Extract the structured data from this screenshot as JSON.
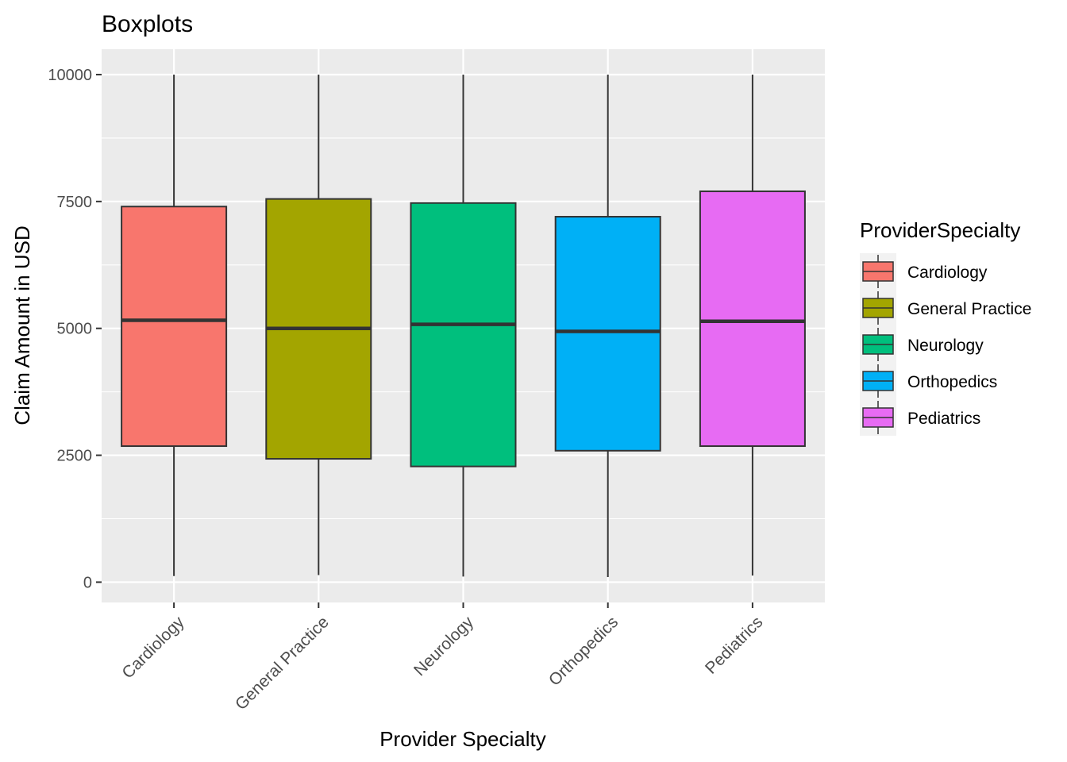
{
  "chart_data": {
    "type": "box",
    "title": "Boxplots",
    "xlabel": "Provider Specialty",
    "ylabel": "Claim Amount in USD",
    "ylim": [
      -400,
      10500
    ],
    "yticks": [
      0,
      2500,
      5000,
      7500,
      10000
    ],
    "ytick_labels": [
      "0",
      "2500",
      "5000",
      "7500",
      "10000"
    ],
    "grid": true,
    "legend": {
      "title": "ProviderSpecialty",
      "position": "right"
    },
    "categories": [
      "Cardiology",
      "General Practice",
      "Neurology",
      "Orthopedics",
      "Pediatrics"
    ],
    "series": [
      {
        "name": "Cardiology",
        "color": "#F8766D",
        "min": 120,
        "q1": 2680,
        "median": 5160,
        "q3": 7400,
        "max": 10000
      },
      {
        "name": "General Practice",
        "color": "#A3A500",
        "min": 140,
        "q1": 2430,
        "median": 5000,
        "q3": 7550,
        "max": 10000
      },
      {
        "name": "Neurology",
        "color": "#00BF7D",
        "min": 110,
        "q1": 2280,
        "median": 5080,
        "q3": 7470,
        "max": 10000
      },
      {
        "name": "Orthopedics",
        "color": "#00B0F6",
        "min": 100,
        "q1": 2590,
        "median": 4940,
        "q3": 7200,
        "max": 10000
      },
      {
        "name": "Pediatrics",
        "color": "#E76BF3",
        "min": 130,
        "q1": 2680,
        "median": 5140,
        "q3": 7700,
        "max": 10000
      }
    ]
  }
}
